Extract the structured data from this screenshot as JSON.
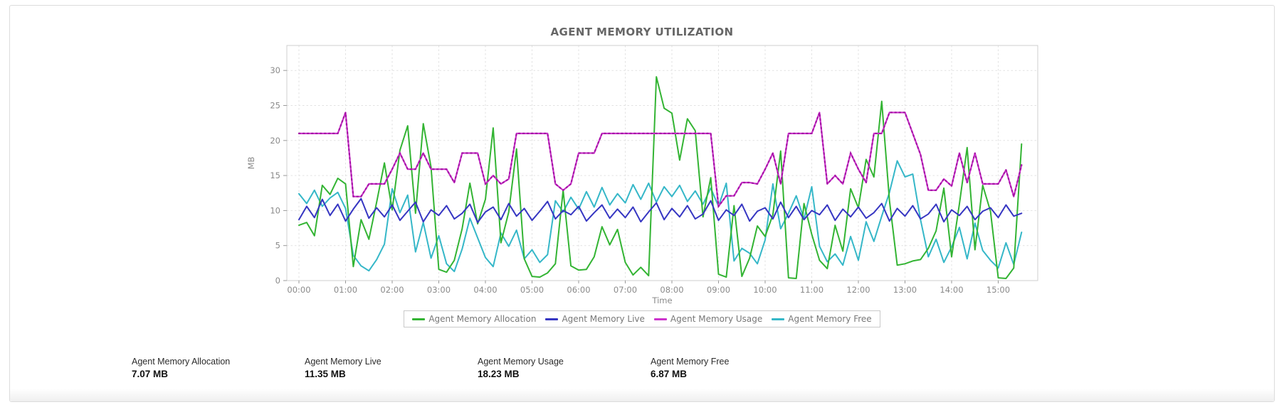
{
  "chart_data": {
    "type": "line",
    "title": "AGENT MEMORY UTILIZATION",
    "xlabel": "Time",
    "ylabel": "MB",
    "ylim": [
      0,
      33.5
    ],
    "y_ticks": [
      0,
      5,
      10,
      15,
      20,
      25,
      30
    ],
    "x_tick_labels": [
      "00:00",
      "01:00",
      "02:00",
      "03:00",
      "04:00",
      "05:00",
      "06:00",
      "07:00",
      "08:00",
      "09:00",
      "10:00",
      "11:00",
      "12:00",
      "13:00",
      "14:00",
      "15:00"
    ],
    "x_start": "00:00",
    "x_step_minutes": 10,
    "grid": true,
    "legend_position": "bottom",
    "colors": {
      "grid": "#e2e2e2",
      "plot_border": "#cfcfcf",
      "tick": "#9a9a9a",
      "tick_label": "#8a8a8a"
    },
    "series": [
      {
        "name": "Agent Memory Allocation",
        "color": "#33b433",
        "values": [
          7.9,
          8.3,
          6.4,
          13.6,
          12.3,
          14.6,
          13.8,
          2.0,
          8.7,
          5.9,
          11.2,
          16.8,
          10.1,
          18.6,
          22.1,
          9.6,
          22.4,
          16.2,
          1.6,
          1.2,
          2.9,
          7.4,
          13.9,
          8.1,
          11.6,
          21.8,
          5.4,
          9.8,
          18.8,
          3.1,
          0.6,
          0.5,
          1.1,
          2.4,
          12.9,
          2.1,
          1.5,
          1.6,
          3.4,
          7.7,
          5.1,
          7.3,
          2.6,
          0.8,
          1.9,
          0.7,
          29.1,
          24.6,
          23.9,
          17.2,
          23.1,
          21.4,
          9.1,
          14.7,
          0.9,
          0.5,
          10.7,
          0.6,
          3.2,
          7.8,
          6.3,
          9.4,
          18.5,
          0.4,
          0.3,
          11.0,
          6.6,
          2.9,
          1.7,
          7.9,
          4.2,
          13.1,
          10.4,
          17.3,
          14.8,
          25.6,
          11.4,
          2.2,
          2.4,
          2.8,
          3.0,
          4.6,
          7.1,
          13.2,
          3.4,
          10.9,
          19.0,
          4.4,
          13.6,
          9.9,
          0.4,
          0.3,
          1.8,
          19.5
        ]
      },
      {
        "name": "Agent Memory Live",
        "color": "#3636c2",
        "values": [
          8.7,
          10.6,
          9.0,
          11.6,
          9.3,
          10.9,
          8.5,
          10.2,
          11.7,
          8.9,
          10.4,
          9.1,
          10.8,
          8.6,
          9.9,
          11.2,
          8.4,
          10.1,
          9.3,
          10.7,
          8.8,
          9.6,
          10.9,
          8.3,
          9.8,
          10.5,
          8.7,
          11.0,
          9.2,
          10.3,
          8.6,
          9.9,
          11.3,
          8.8,
          10.0,
          9.4,
          10.6,
          8.5,
          9.7,
          10.8,
          8.9,
          10.2,
          9.0,
          10.5,
          8.4,
          9.8,
          11.1,
          8.7,
          10.3,
          9.1,
          10.7,
          8.8,
          9.5,
          11.4,
          8.6,
          10.1,
          9.3,
          10.9,
          8.5,
          9.9,
          10.4,
          8.8,
          11.2,
          9.0,
          10.6,
          8.7,
          10.0,
          9.4,
          10.8,
          8.6,
          10.2,
          9.1,
          10.5,
          8.9,
          9.7,
          11.0,
          8.5,
          10.3,
          9.2,
          10.7,
          8.8,
          9.5,
          10.9,
          8.4,
          10.1,
          9.3,
          10.6,
          8.7,
          9.9,
          10.4,
          9.0,
          10.8,
          9.2,
          9.6
        ]
      },
      {
        "name": "Agent Memory Usage",
        "color": "#cc33cc",
        "marker_color": "#a314a3",
        "dotted_overlay": true,
        "values": [
          21,
          21,
          21,
          21,
          21,
          21,
          24,
          12,
          12,
          13.8,
          13.8,
          13.8,
          15.9,
          18.2,
          15.9,
          15.9,
          18.2,
          15.9,
          15.9,
          15.9,
          14.0,
          18.2,
          18.2,
          18.2,
          13.8,
          15.0,
          13.8,
          14.5,
          21,
          21,
          21,
          21,
          21,
          13.8,
          12.9,
          13.8,
          18.2,
          18.2,
          18.2,
          21,
          21,
          21,
          21,
          21,
          21,
          21,
          21,
          21,
          21,
          21,
          21,
          21,
          21,
          21,
          10.6,
          12.1,
          12.1,
          14.0,
          14.0,
          13.8,
          15.9,
          18.2,
          13.8,
          21,
          21,
          21,
          21,
          24,
          13.8,
          15.0,
          13.8,
          18.2,
          15.9,
          14.0,
          21,
          21,
          24,
          24,
          24,
          21,
          18.0,
          12.9,
          12.9,
          14.5,
          13.5,
          18.2,
          14.0,
          18.2,
          13.8,
          13.8,
          13.8,
          15.8,
          12.0,
          16.5
        ]
      },
      {
        "name": "Agent Memory Free",
        "color": "#35b7c8",
        "values": [
          12.4,
          11.0,
          12.9,
          10.6,
          11.8,
          12.6,
          10.3,
          3.6,
          2.1,
          1.4,
          3.0,
          5.2,
          13.1,
          9.7,
          12.2,
          4.1,
          8.3,
          3.2,
          6.4,
          2.4,
          1.3,
          4.5,
          8.9,
          6.1,
          3.3,
          2.0,
          6.8,
          4.9,
          7.2,
          3.1,
          4.4,
          2.6,
          3.7,
          11.4,
          9.8,
          11.9,
          10.2,
          12.7,
          10.5,
          13.3,
          10.8,
          12.4,
          11.1,
          13.7,
          11.6,
          13.9,
          11.2,
          13.4,
          12.0,
          13.6,
          11.3,
          12.8,
          10.9,
          13.2,
          10.6,
          13.9,
          2.8,
          4.6,
          3.9,
          2.4,
          5.8,
          13.8,
          7.4,
          9.6,
          12.1,
          8.8,
          13.4,
          4.9,
          2.7,
          3.8,
          2.2,
          6.3,
          2.9,
          8.4,
          5.6,
          9.2,
          12.6,
          17.1,
          14.8,
          15.2,
          8.7,
          3.4,
          5.9,
          2.6,
          4.8,
          7.6,
          3.1,
          8.2,
          4.3,
          2.9,
          1.8,
          5.4,
          2.3,
          6.9
        ]
      }
    ]
  },
  "stats": [
    {
      "label": "Agent Memory Allocation",
      "value": "7.07 MB"
    },
    {
      "label": "Agent Memory Live",
      "value": "11.35 MB"
    },
    {
      "label": "Agent Memory Usage",
      "value": "18.23 MB"
    },
    {
      "label": "Agent Memory Free",
      "value": "6.87 MB"
    }
  ]
}
